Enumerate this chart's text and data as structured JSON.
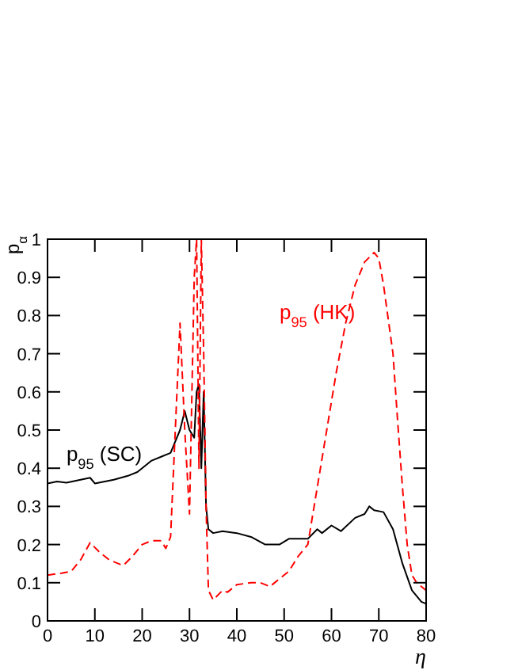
{
  "chart_data": {
    "type": "line",
    "xlabel": "η",
    "ylabel": "p$_{α}$",
    "xlim": [
      0,
      80
    ],
    "ylim": [
      0,
      1
    ],
    "xticks": [
      0,
      10,
      20,
      30,
      40,
      50,
      60,
      70,
      80
    ],
    "yticks": [
      0,
      0.1,
      0.2,
      0.3,
      0.4,
      0.5,
      0.6,
      0.7,
      0.8,
      0.9,
      1
    ],
    "grid": false,
    "series": [
      {
        "name": "p$_{95}$ (SC)",
        "color": "#000000",
        "line_style": "solid",
        "x": [
          0,
          2,
          4,
          7,
          9,
          10,
          14,
          17,
          19,
          22,
          24,
          26,
          27,
          28,
          29,
          30,
          31,
          31.5,
          32,
          32.5,
          33,
          33.5,
          34,
          35,
          37,
          40,
          43,
          46,
          49,
          51,
          53,
          55,
          57,
          58,
          60,
          62,
          65,
          67,
          68,
          69,
          71,
          73,
          75,
          77,
          79,
          80
        ],
        "values": [
          0.36,
          0.365,
          0.362,
          0.37,
          0.375,
          0.36,
          0.37,
          0.38,
          0.39,
          0.42,
          0.43,
          0.44,
          0.47,
          0.5,
          0.55,
          0.5,
          0.48,
          0.6,
          0.62,
          0.4,
          0.6,
          0.3,
          0.24,
          0.23,
          0.235,
          0.23,
          0.22,
          0.2,
          0.2,
          0.215,
          0.215,
          0.215,
          0.24,
          0.23,
          0.25,
          0.235,
          0.27,
          0.28,
          0.3,
          0.29,
          0.285,
          0.24,
          0.15,
          0.08,
          0.05,
          0.045
        ]
      },
      {
        "name": "p$_{95}$ (HK)",
        "color": "#ff0000",
        "line_style": "dashed",
        "x": [
          0,
          3,
          5,
          7,
          9,
          11,
          13,
          16,
          18,
          20,
          22,
          24,
          25,
          26,
          27,
          28,
          29,
          30,
          31,
          31.5,
          32,
          32.5,
          33,
          33.5,
          34,
          35,
          37,
          38,
          40,
          43,
          45,
          47,
          49,
          51,
          53,
          55,
          57,
          59,
          61,
          63,
          65,
          67,
          69,
          70,
          71,
          73,
          74,
          75,
          76,
          77,
          78,
          80
        ],
        "values": [
          0.12,
          0.125,
          0.13,
          0.16,
          0.205,
          0.18,
          0.16,
          0.145,
          0.17,
          0.2,
          0.21,
          0.21,
          0.19,
          0.22,
          0.5,
          0.78,
          0.5,
          0.28,
          0.9,
          1,
          0.4,
          1,
          0.7,
          0.3,
          0.08,
          0.055,
          0.08,
          0.075,
          0.095,
          0.1,
          0.1,
          0.09,
          0.11,
          0.13,
          0.17,
          0.2,
          0.35,
          0.5,
          0.65,
          0.78,
          0.88,
          0.94,
          0.965,
          0.95,
          0.88,
          0.7,
          0.52,
          0.35,
          0.2,
          0.12,
          0.1,
          0.08
        ]
      }
    ]
  }
}
